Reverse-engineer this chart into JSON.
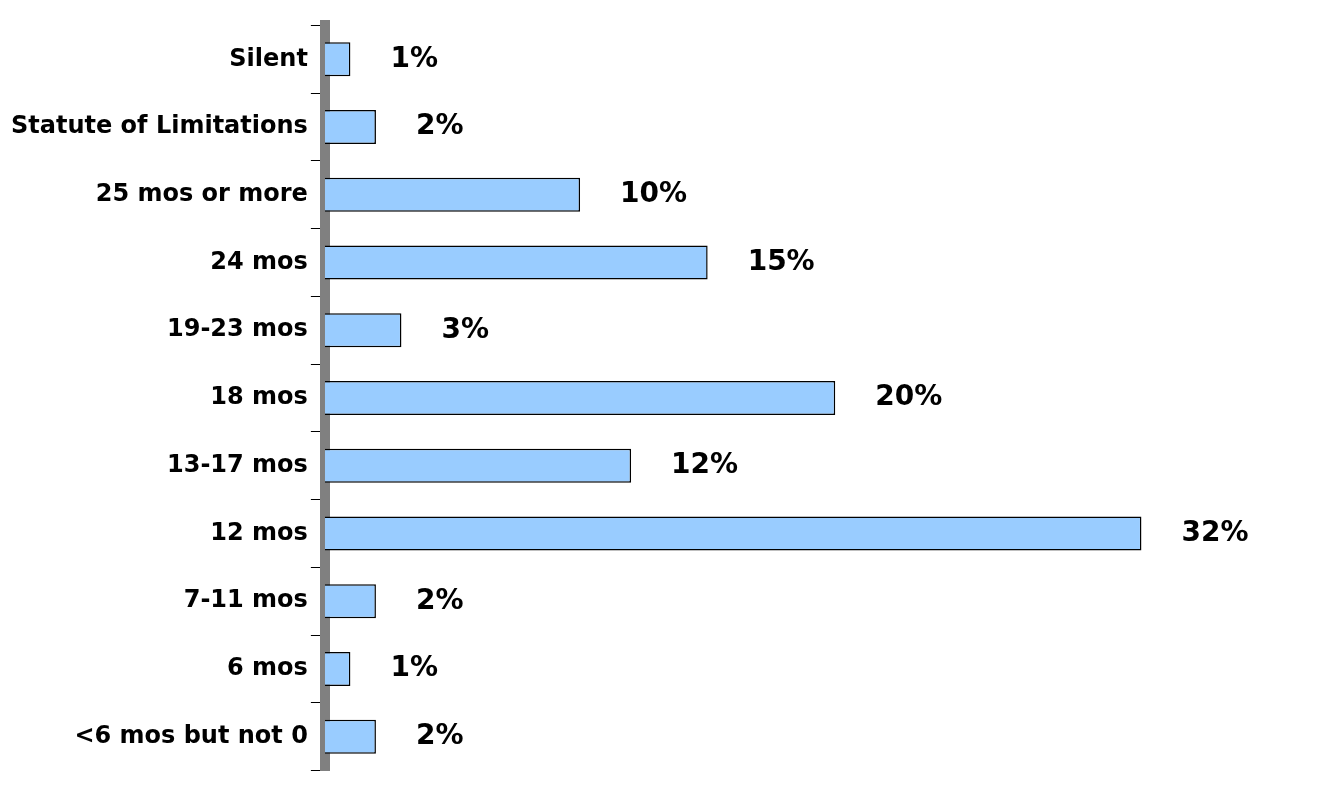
{
  "chart_data": {
    "type": "bar",
    "orientation": "horizontal",
    "categories": [
      "Silent",
      "Statute of Limitations",
      "25 mos or more",
      "24 mos",
      "19-23 mos",
      "18 mos",
      "13-17 mos",
      "12 mos",
      "7-11 mos",
      "6 mos",
      "<6 mos but not 0"
    ],
    "values": [
      1,
      2,
      10,
      15,
      3,
      20,
      12,
      32,
      2,
      1,
      2
    ],
    "value_labels": [
      "1%",
      "2%",
      "10%",
      "15%",
      "3%",
      "20%",
      "12%",
      "32%",
      "2%",
      "1%",
      "2%"
    ],
    "color": "#99ccff",
    "grid": false,
    "legend": false
  }
}
